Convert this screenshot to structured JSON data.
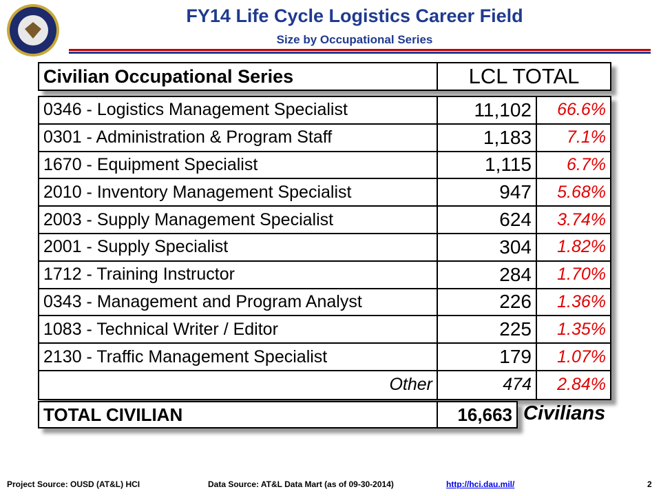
{
  "header": {
    "title": "FY14 Life Cycle Logistics Career Field",
    "subtitle": "Size by Occupational Series"
  },
  "table": {
    "columns": [
      "Civilian Occupational Series",
      "LCL TOTAL"
    ],
    "rows": [
      [
        "0346 - Logistics Management Specialist",
        "11,102",
        "66.6%"
      ],
      [
        "0301 - Administration & Program Staff",
        "1,183",
        "7.1%"
      ],
      [
        "1670 - Equipment Specialist",
        "1,115",
        "6.7%"
      ],
      [
        "2010 - Inventory Management Specialist",
        "947",
        "5.68%"
      ],
      [
        "2003 - Supply Management Specialist",
        "624",
        "3.74%"
      ],
      [
        "2001 - Supply Specialist",
        "304",
        "1.82%"
      ],
      [
        "1712 - Training Instructor",
        "284",
        "1.70%"
      ],
      [
        "0343 - Management and Program Analyst",
        "226",
        "1.36%"
      ],
      [
        "1083 - Technical Writer / Editor",
        "225",
        "1.35%"
      ],
      [
        "2130 - Traffic Management Specialist",
        "179",
        "1.07%"
      ],
      [
        "Other",
        "474",
        "2.84%"
      ]
    ],
    "total": [
      "TOTAL CIVILIAN",
      "16,663",
      "Civilians"
    ]
  },
  "footer": {
    "project_source": "Project Source:  OUSD (AT&L)  HCI",
    "data_source": "Data Source: AT&L Data Mart (as of 09-30-2014)",
    "link": "http://hci.dau.mil/",
    "page": "2"
  }
}
